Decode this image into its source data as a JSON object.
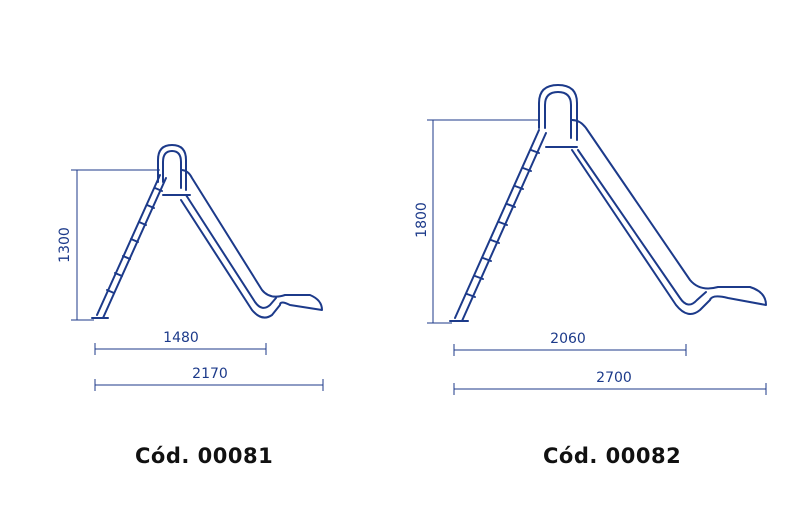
{
  "colors": {
    "line": "#1c3a8a",
    "caption": "#111111",
    "background": "#ffffff"
  },
  "products": [
    {
      "code_label": "Cód. 00081",
      "height": "1300",
      "base_length": "1480",
      "total_length": "2170"
    },
    {
      "code_label": "Cód. 00082",
      "height": "1800",
      "base_length": "2060",
      "total_length": "2700"
    }
  ]
}
